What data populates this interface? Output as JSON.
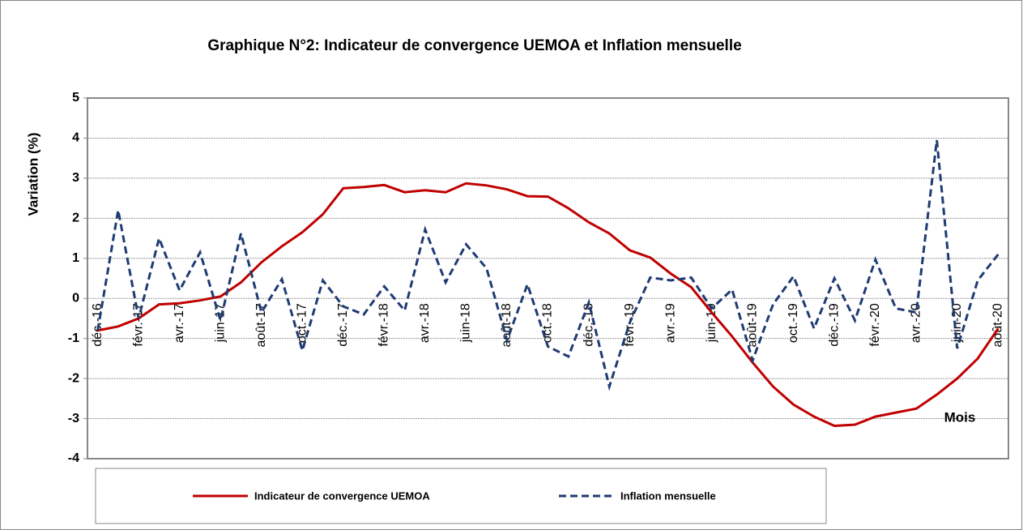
{
  "chart_data": {
    "type": "line",
    "title": "Graphique N°2: Indicateur de convergence UEMOA et Inflation mensuelle",
    "y_label": "Variation (%)",
    "x_label": "Mois",
    "categories": [
      "déc.-16",
      null,
      "févr.-17",
      null,
      "avr.-17",
      null,
      "juin-17",
      null,
      "août-17",
      null,
      "oct.-17",
      null,
      "déc.-17",
      null,
      "févr.-18",
      null,
      "avr.-18",
      null,
      "juin-18",
      null,
      "août-18",
      null,
      "oct.-18",
      null,
      "déc.-18",
      null,
      "févr.-19",
      null,
      "avr.-19",
      null,
      "juin-19",
      null,
      "août-19",
      null,
      "oct.-19",
      null,
      "déc.-19",
      null,
      "févr.-20",
      null,
      "avr.-20",
      null,
      "juin-20",
      null,
      "août-20"
    ],
    "series": [
      {
        "name": "Indicateur de convergence UEMOA",
        "color": "#c00000",
        "dash": false,
        "values": [
          -0.8,
          -0.7,
          -0.5,
          -0.15,
          -0.12,
          -0.05,
          0.05,
          0.4,
          0.9,
          1.3,
          1.65,
          2.1,
          2.75,
          2.78,
          2.83,
          2.65,
          2.7,
          2.65,
          2.87,
          2.82,
          2.72,
          2.55,
          2.54,
          2.25,
          1.9,
          1.62,
          1.2,
          1.02,
          0.62,
          0.28,
          -0.35,
          -0.95,
          -1.6,
          -2.2,
          -2.65,
          -2.95,
          -3.18,
          -3.15,
          -2.95,
          -2.85,
          -2.75,
          -2.4,
          -2.0,
          -1.5,
          -0.75
        ]
      },
      {
        "name": "Inflation mensuelle",
        "color": "#1f3b73",
        "dash": true,
        "values": [
          -0.8,
          2.2,
          -0.5,
          1.5,
          0.2,
          1.15,
          -0.55,
          1.62,
          -0.35,
          0.48,
          -1.3,
          0.45,
          -0.2,
          -0.4,
          0.3,
          -0.3,
          1.72,
          0.4,
          1.35,
          0.75,
          -1.05,
          0.35,
          -1.2,
          -1.45,
          -0.1,
          -2.2,
          -0.6,
          0.52,
          0.45,
          0.52,
          -0.25,
          0.22,
          -1.55,
          -0.15,
          0.55,
          -0.75,
          0.5,
          -0.55,
          0.97,
          -0.25,
          -0.35,
          3.95,
          -1.25,
          0.45,
          1.1
        ]
      }
    ],
    "ylim": [
      -4,
      5
    ],
    "yticks": [
      -4,
      -3,
      -2,
      -1,
      0,
      1,
      2,
      3,
      4,
      5
    ],
    "grid": true,
    "legend": "bottom"
  }
}
